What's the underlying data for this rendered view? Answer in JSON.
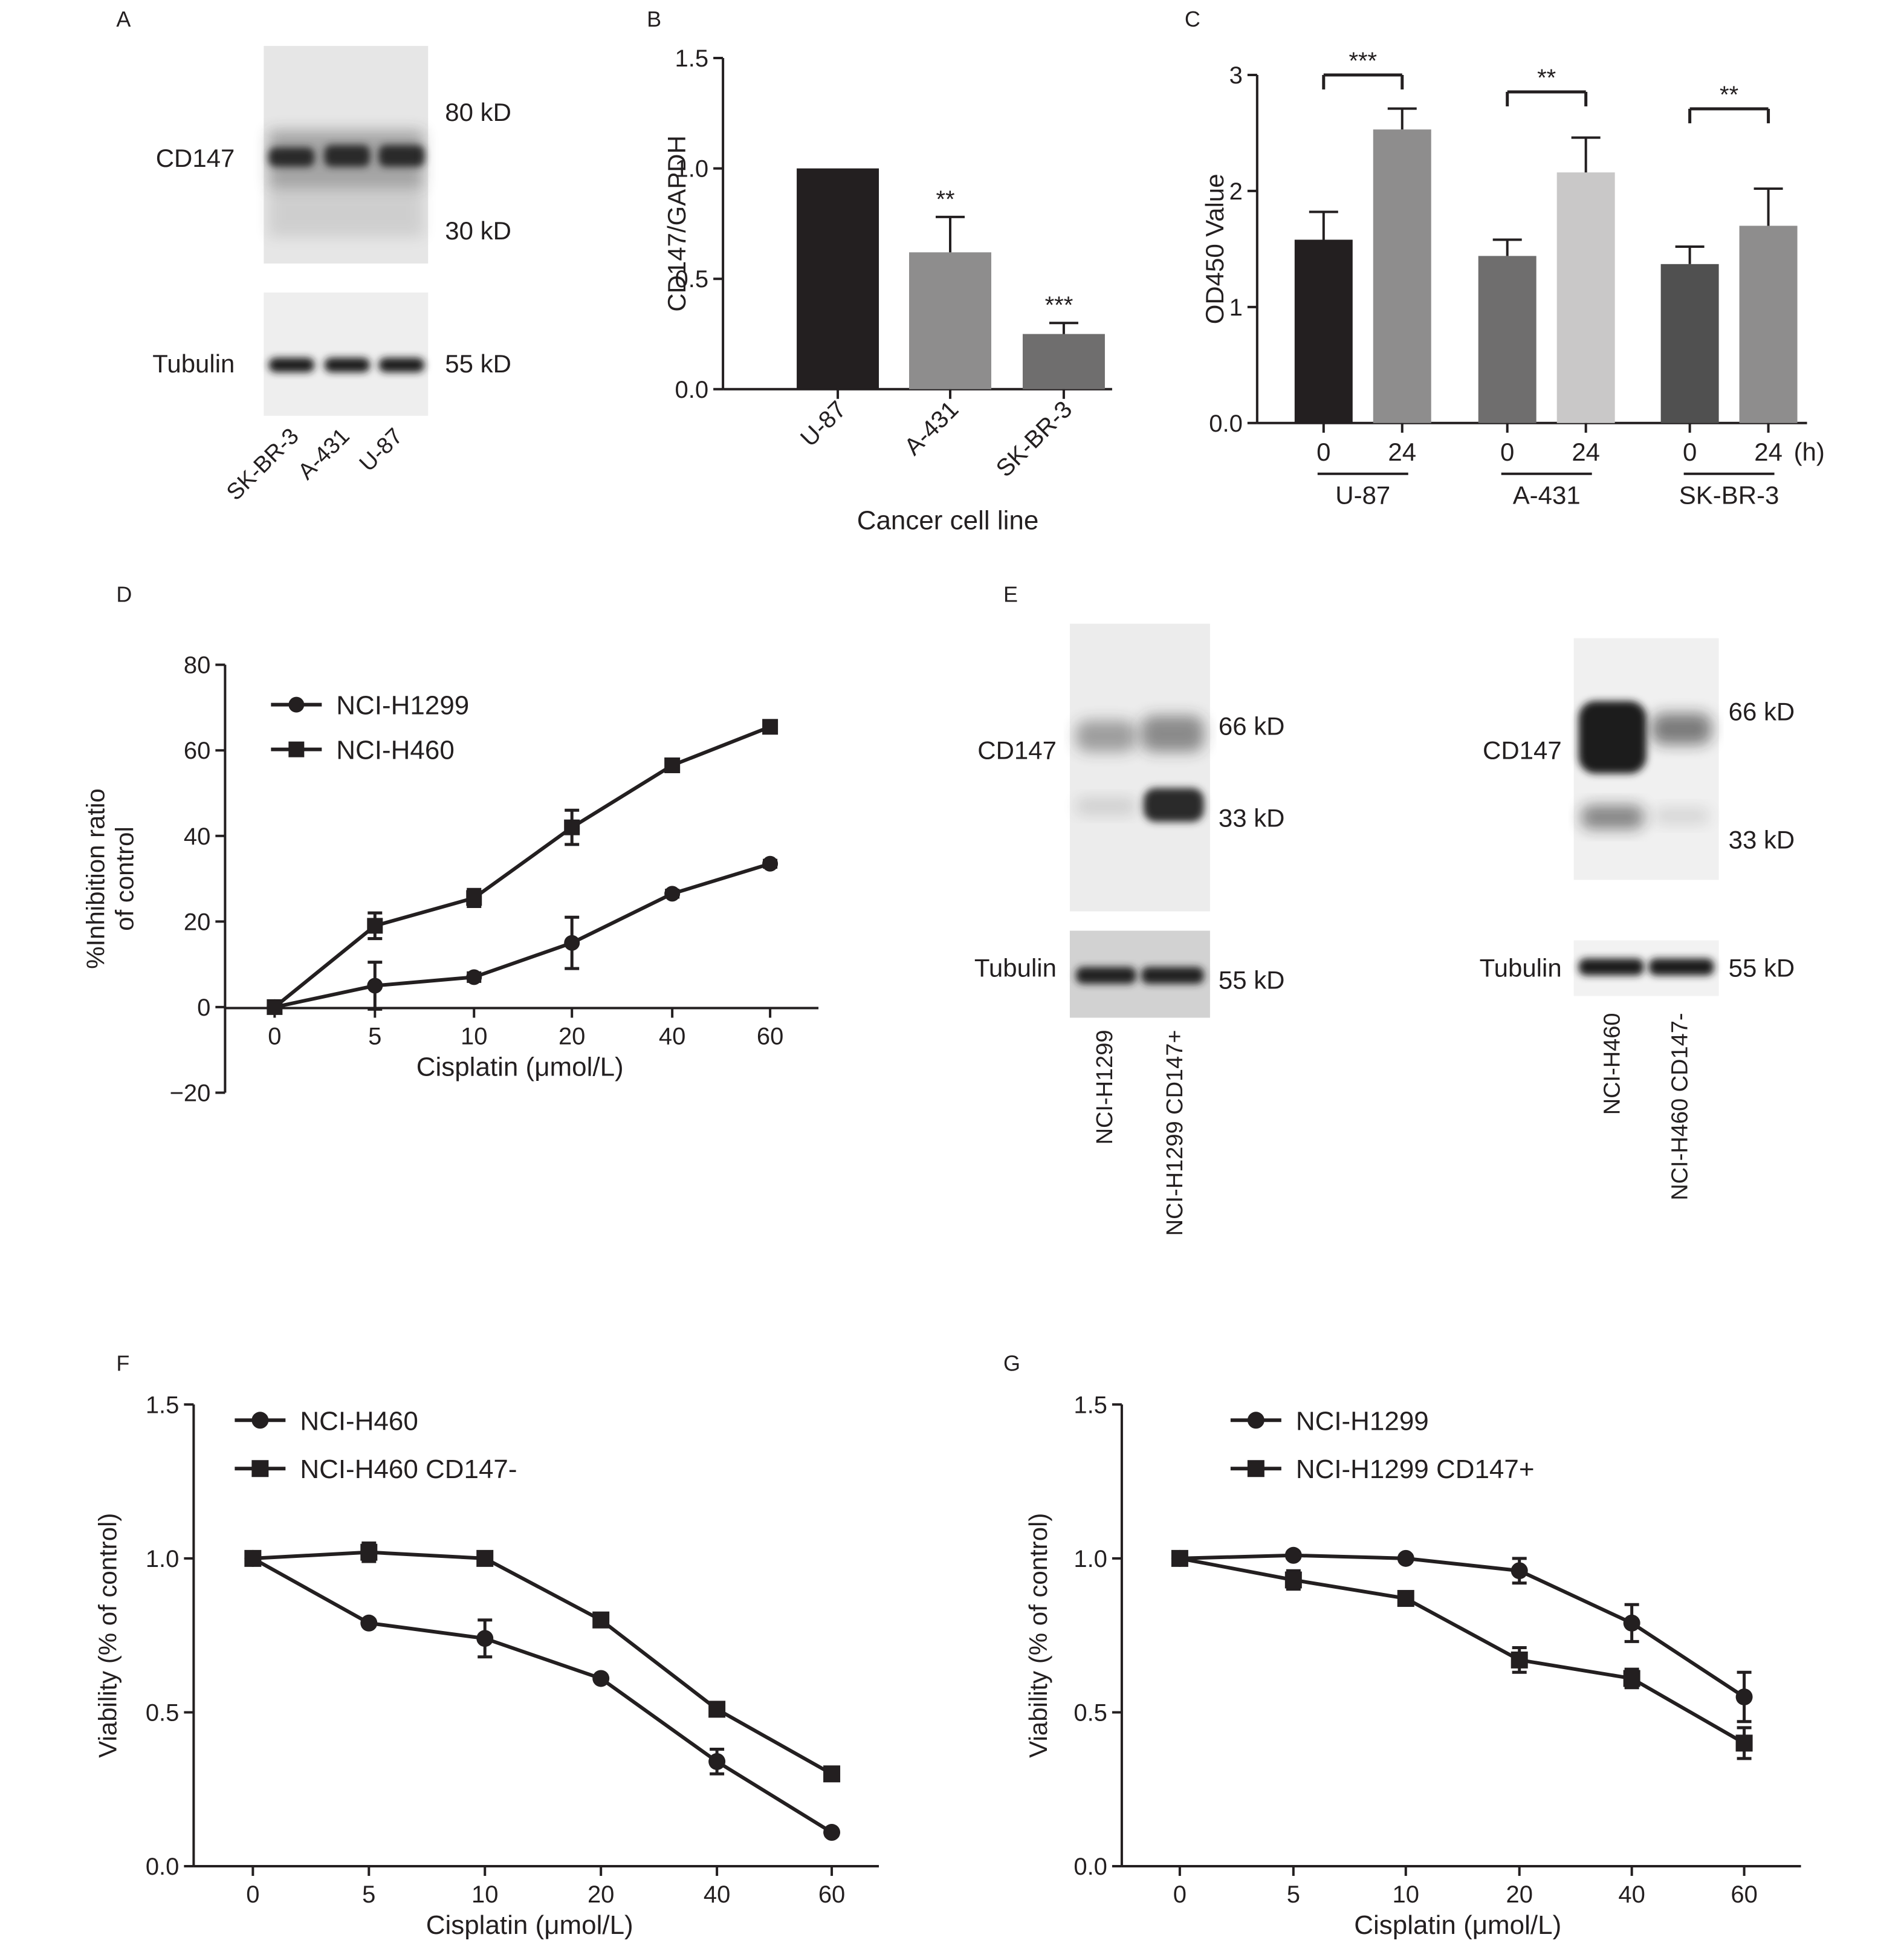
{
  "colors": {
    "ink": "#231f20",
    "bar_black": "#231f20",
    "bar_dark": "#6f6e6e",
    "bar_mid": "#8e8d8d",
    "bar_light": "#c9c8c8",
    "blot_bg": "#e6e6e6",
    "band": "#2a2a2a"
  },
  "panels": {
    "A": {
      "letter": "A",
      "band_label_top": "CD147",
      "band_label_bottom": "Tubulin",
      "markers": [
        "80 kD",
        "30 kD",
        "55 kD"
      ],
      "lanes": [
        "SK-BR-3",
        "A-431",
        "U-87"
      ]
    },
    "E": {
      "letter": "E",
      "left": {
        "band_label_top": "CD147",
        "band_label_bottom": "Tubulin",
        "markers": [
          "66 kD",
          "33 kD",
          "55 kD"
        ],
        "lanes": [
          "NCI-H1299",
          "NCI-H1299 CD147+"
        ]
      },
      "right": {
        "band_label_top": "CD147",
        "band_label_bottom": "Tubulin",
        "markers": [
          "66 kD",
          "33 kD",
          "55 kD"
        ],
        "lanes": [
          "NCI-H460",
          "NCI-H460 CD147-"
        ]
      }
    }
  },
  "chart_data": [
    {
      "panel": "B",
      "type": "bar",
      "ylabel": "CD147/GAPDH",
      "xlabel": "Cancer cell line",
      "ylim": [
        0,
        1.5
      ],
      "yticks": [
        "0.0",
        "0.5",
        "1.0",
        "1.5"
      ],
      "categories": [
        "U-87",
        "A-431",
        "SK-BR-3"
      ],
      "values": [
        1.0,
        0.62,
        0.25
      ],
      "errors": [
        0,
        0.16,
        0.05
      ],
      "significance": [
        "",
        "**",
        "***"
      ]
    },
    {
      "panel": "C",
      "type": "bar",
      "ylabel": "OD450 Value",
      "ylim": [
        0,
        3
      ],
      "yticks": [
        "0.0",
        "1",
        "2",
        "3"
      ],
      "groups": [
        "U-87",
        "A-431",
        "SK-BR-3"
      ],
      "times": [
        "0",
        "24"
      ],
      "time_unit": "(h)",
      "values": [
        [
          1.58,
          2.53
        ],
        [
          1.44,
          2.16
        ],
        [
          1.37,
          1.7
        ]
      ],
      "errors": [
        [
          0.24,
          0.18
        ],
        [
          0.14,
          0.3
        ],
        [
          0.15,
          0.32
        ]
      ],
      "significance": [
        "***",
        "**",
        "**"
      ]
    },
    {
      "panel": "D",
      "type": "line",
      "ylabel_lines": [
        "%Inhibition ratio",
        "of control"
      ],
      "xlabel": "Cisplatin (μmol/L)",
      "categories": [
        "0",
        "5",
        "10",
        "20",
        "40",
        "60"
      ],
      "ylim": [
        -20,
        80
      ],
      "yticks": [
        "−20",
        "0",
        "20",
        "40",
        "60",
        "80"
      ],
      "series": [
        {
          "name": "NCI-H1299",
          "marker": "circle",
          "values": [
            0,
            5,
            7,
            15,
            26.5,
            33.5
          ],
          "errors": [
            0,
            5.5,
            1,
            6,
            0.8,
            0.8
          ]
        },
        {
          "name": "NCI-H460",
          "marker": "square",
          "values": [
            0,
            19,
            25.5,
            42,
            56.5,
            65.5
          ],
          "errors": [
            0,
            3,
            2,
            4,
            0.8,
            0.8
          ]
        }
      ]
    },
    {
      "panel": "F",
      "type": "line",
      "ylabel": "Viability (% of control)",
      "xlabel": "Cisplatin (μmol/L)",
      "categories": [
        "0",
        "5",
        "10",
        "20",
        "40",
        "60"
      ],
      "ylim": [
        0,
        1.5
      ],
      "yticks": [
        "0.0",
        "0.5",
        "1.0",
        "1.5"
      ],
      "series": [
        {
          "name": "NCI-H460",
          "marker": "circle",
          "values": [
            1.0,
            0.79,
            0.74,
            0.61,
            0.34,
            0.11
          ],
          "errors": [
            0,
            0.01,
            0.06,
            0.01,
            0.04,
            0.01
          ]
        },
        {
          "name": "NCI-H460 CD147-",
          "marker": "square",
          "values": [
            1.0,
            1.02,
            1.0,
            0.8,
            0.51,
            0.3
          ],
          "errors": [
            0,
            0.03,
            0.01,
            0.01,
            0.01,
            0.01
          ]
        }
      ]
    },
    {
      "panel": "G",
      "type": "line",
      "ylabel": "Viability (% of control)",
      "xlabel": "Cisplatin (μmol/L)",
      "categories": [
        "0",
        "5",
        "10",
        "20",
        "40",
        "60"
      ],
      "ylim": [
        0,
        1.5
      ],
      "yticks": [
        "0.0",
        "0.5",
        "1.0",
        "1.5"
      ],
      "series": [
        {
          "name": "NCI-H1299",
          "marker": "circle",
          "values": [
            1.0,
            1.01,
            1.0,
            0.96,
            0.79,
            0.55
          ],
          "errors": [
            0,
            0.01,
            0.01,
            0.04,
            0.06,
            0.08
          ]
        },
        {
          "name": "NCI-H1299 CD147+",
          "marker": "square",
          "values": [
            1.0,
            0.93,
            0.87,
            0.67,
            0.61,
            0.4
          ],
          "errors": [
            0,
            0.03,
            0.01,
            0.04,
            0.03,
            0.05
          ]
        }
      ]
    }
  ]
}
